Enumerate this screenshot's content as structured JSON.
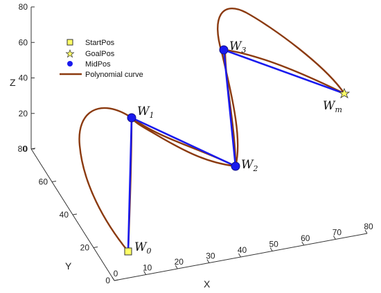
{
  "chart_data": {
    "type": "line",
    "projection": "3d",
    "xlabel": "X",
    "ylabel": "Y",
    "zlabel": "Z",
    "xlim": [
      0,
      80
    ],
    "ylim": [
      0,
      80
    ],
    "zlim": [
      0,
      80
    ],
    "x_ticks": [
      "0",
      "10",
      "20",
      "30",
      "40",
      "50",
      "60",
      "70",
      "80"
    ],
    "y_ticks": [
      "0",
      "20",
      "40",
      "60",
      "80"
    ],
    "z_ticks": [
      "0",
      "20",
      "40",
      "60",
      "80"
    ],
    "grid": false,
    "legend_position": "top-left",
    "legend": [
      {
        "label": "StartPos",
        "marker": "square",
        "color": "#ffff66"
      },
      {
        "label": "GoalPos",
        "marker": "star",
        "color": "#ffff66"
      },
      {
        "label": "MidPos",
        "marker": "circle",
        "color": "#1a1aee"
      },
      {
        "label": "Polynomial curve",
        "marker": "line",
        "color": "#8b3a0f"
      }
    ],
    "waypoints": [
      {
        "name": "W",
        "sub": "0",
        "role": "StartPos",
        "x": 5,
        "y": 20,
        "z": 0
      },
      {
        "name": "W",
        "sub": "1",
        "role": "MidPos",
        "x": 5,
        "y": 20,
        "z": 55
      },
      {
        "name": "W",
        "sub": "2",
        "role": "MidPos",
        "x": 40,
        "y": 40,
        "z": 40
      },
      {
        "name": "W",
        "sub": "3",
        "role": "MidPos",
        "x": 45,
        "y": 60,
        "z": 80
      },
      {
        "name": "W",
        "sub": "m",
        "role": "GoalPos",
        "x": 80,
        "y": 50,
        "z": 45
      }
    ],
    "colors": {
      "segments": "#1a1aee",
      "curve": "#8b3a0f",
      "marker_fill": "#1a1aee",
      "start_goal_fill": "#ffff66"
    }
  }
}
